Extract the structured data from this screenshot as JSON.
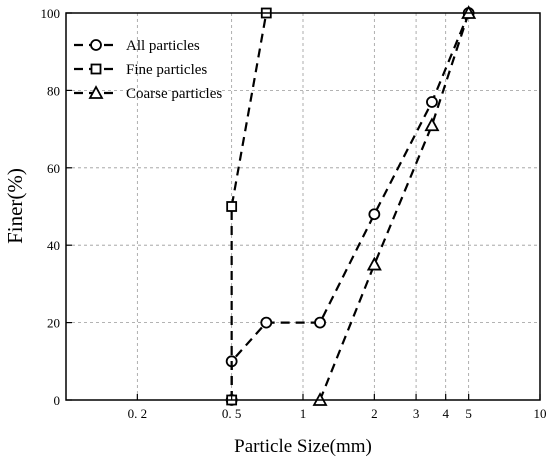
{
  "chart_data": {
    "type": "line",
    "title": "",
    "xlabel": "Particle Size(mm)",
    "ylabel": "Finer(%)",
    "xscale": "log",
    "xlim": [
      0.1,
      10
    ],
    "ylim": [
      0,
      100
    ],
    "grid": true,
    "legend_position": "top-left",
    "x_ticks": [
      {
        "value": 0.2,
        "label": "0. 2"
      },
      {
        "value": 0.5,
        "label": "0. 5"
      },
      {
        "value": 1,
        "label": "1"
      },
      {
        "value": 2,
        "label": "2"
      },
      {
        "value": 3,
        "label": "3"
      },
      {
        "value": 4,
        "label": "4"
      },
      {
        "value": 5,
        "label": "5"
      },
      {
        "value": 10,
        "label": "10"
      }
    ],
    "y_ticks": [
      0,
      20,
      40,
      60,
      80,
      100
    ],
    "series": [
      {
        "name": "All particles",
        "marker": "circle",
        "line_style": "dashed",
        "x": [
          0.5,
          0.5,
          0.7,
          1.18,
          2,
          3.5,
          5
        ],
        "y": [
          0,
          10,
          20,
          20,
          48,
          77,
          100
        ]
      },
      {
        "name": "Fine particles",
        "marker": "square",
        "line_style": "dashed",
        "x": [
          0.5,
          0.5,
          0.7
        ],
        "y": [
          0,
          50,
          100
        ]
      },
      {
        "name": "Coarse particles",
        "marker": "triangle",
        "line_style": "dashed",
        "x": [
          1.18,
          2,
          3.5,
          5
        ],
        "y": [
          0,
          35,
          71,
          100
        ]
      }
    ]
  }
}
